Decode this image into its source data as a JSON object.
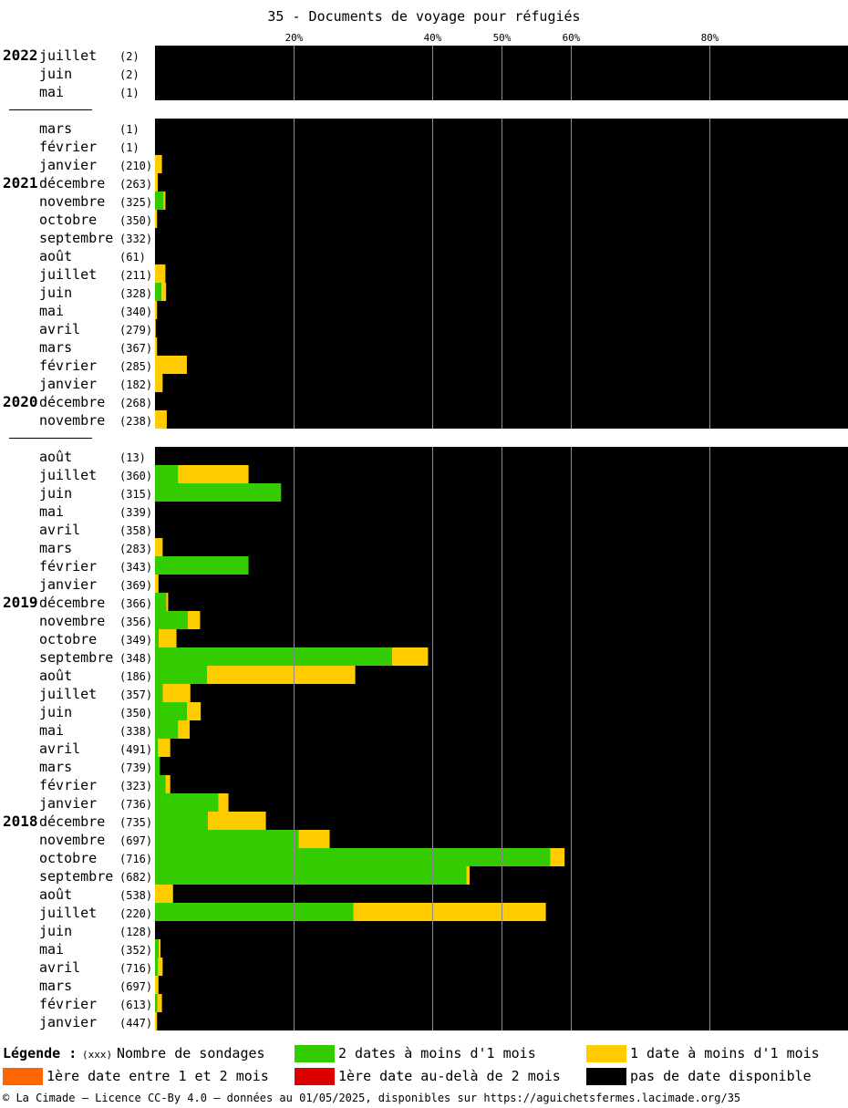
{
  "chart_data": {
    "type": "bar",
    "orientation": "horizontal",
    "stacked": true,
    "title": "35 - Documents de voyage pour réfugiés",
    "x_ticks": [
      "20%",
      "40%",
      "50%",
      "60%",
      "80%"
    ],
    "x_tick_values": [
      20,
      40,
      50,
      60,
      80
    ],
    "xlim": [
      0,
      100
    ],
    "grid": true,
    "series_names": [
      "2 dates à moins d'1 mois",
      "1 date à moins d'1 mois",
      "1ère date entre 1 et 2 mois",
      "1ère date au-delà de 2 mois",
      "pas de date disponible"
    ],
    "series_colors": [
      "#33cc00",
      "#ffcc00",
      "#ff6600",
      "#dd0000",
      "#000000"
    ],
    "groups": [
      {
        "rows": [
          {
            "year": "2022",
            "month": "juillet",
            "count": "(2)",
            "g": 0,
            "y": 0
          },
          {
            "year": "",
            "month": "juin",
            "count": "(2)",
            "g": 0,
            "y": 0
          },
          {
            "year": "",
            "month": "mai",
            "count": "(1)",
            "g": 0,
            "y": 0
          }
        ]
      },
      {
        "rows": [
          {
            "year": "",
            "month": "mars",
            "count": "(1)",
            "g": 0,
            "y": 0
          },
          {
            "year": "",
            "month": "février",
            "count": "(1)",
            "g": 0,
            "y": 0
          },
          {
            "year": "",
            "month": "janvier",
            "count": "(210)",
            "g": 0,
            "y": 1.0
          },
          {
            "year": "2021",
            "month": "décembre",
            "count": "(263)",
            "g": 0,
            "y": 0.4
          },
          {
            "year": "",
            "month": "novembre",
            "count": "(325)",
            "g": 1.2,
            "y": 0.3
          },
          {
            "year": "",
            "month": "octobre",
            "count": "(350)",
            "g": 0,
            "y": 0.3
          },
          {
            "year": "",
            "month": "septembre",
            "count": "(332)",
            "g": 0,
            "y": 0
          },
          {
            "year": "",
            "month": "août",
            "count": "(61)",
            "g": 0,
            "y": 0
          },
          {
            "year": "",
            "month": "juillet",
            "count": "(211)",
            "g": 0,
            "y": 1.5
          },
          {
            "year": "",
            "month": "juin",
            "count": "(328)",
            "g": 0.9,
            "y": 0.7
          },
          {
            "year": "",
            "month": "mai",
            "count": "(340)",
            "g": 0,
            "y": 0.3
          },
          {
            "year": "",
            "month": "avril",
            "count": "(279)",
            "g": 0,
            "y": 0.1
          },
          {
            "year": "",
            "month": "mars",
            "count": "(367)",
            "g": 0,
            "y": 0.3
          },
          {
            "year": "",
            "month": "février",
            "count": "(285)",
            "g": 0,
            "y": 4.6
          },
          {
            "year": "",
            "month": "janvier",
            "count": "(182)",
            "g": 0,
            "y": 1.1
          },
          {
            "year": "2020",
            "month": "décembre",
            "count": "(268)",
            "g": 0,
            "y": 0
          },
          {
            "year": "",
            "month": "novembre",
            "count": "(238)",
            "g": 0,
            "y": 1.7
          }
        ]
      },
      {
        "rows": [
          {
            "year": "",
            "month": "août",
            "count": "(13)",
            "g": 0,
            "y": 0
          },
          {
            "year": "",
            "month": "juillet",
            "count": "(360)",
            "g": 3.3,
            "y": 10.2
          },
          {
            "year": "",
            "month": "juin",
            "count": "(315)",
            "g": 18.2,
            "y": 0
          },
          {
            "year": "",
            "month": "mai",
            "count": "(339)",
            "g": 0,
            "y": 0
          },
          {
            "year": "",
            "month": "avril",
            "count": "(358)",
            "g": 0,
            "y": 0
          },
          {
            "year": "",
            "month": "mars",
            "count": "(283)",
            "g": 0,
            "y": 1.1
          },
          {
            "year": "",
            "month": "février",
            "count": "(343)",
            "g": 13.5,
            "y": 0
          },
          {
            "year": "",
            "month": "janvier",
            "count": "(369)",
            "g": 0,
            "y": 0.5
          },
          {
            "year": "2019",
            "month": "décembre",
            "count": "(366)",
            "g": 1.6,
            "y": 0.3
          },
          {
            "year": "",
            "month": "novembre",
            "count": "(356)",
            "g": 4.7,
            "y": 1.8
          },
          {
            "year": "",
            "month": "octobre",
            "count": "(349)",
            "g": 0.5,
            "y": 2.6
          },
          {
            "year": "",
            "month": "septembre",
            "count": "(348)",
            "g": 34.2,
            "y": 5.2
          },
          {
            "year": "",
            "month": "août",
            "count": "(186)",
            "g": 7.5,
            "y": 21.4
          },
          {
            "year": "",
            "month": "juillet",
            "count": "(357)",
            "g": 1.1,
            "y": 4.0
          },
          {
            "year": "",
            "month": "juin",
            "count": "(350)",
            "g": 4.6,
            "y": 2.0
          },
          {
            "year": "",
            "month": "mai",
            "count": "(338)",
            "g": 3.3,
            "y": 1.7
          },
          {
            "year": "",
            "month": "avril",
            "count": "(491)",
            "g": 0.4,
            "y": 1.8
          },
          {
            "year": "",
            "month": "mars",
            "count": "(739)",
            "g": 0.7,
            "y": 0
          },
          {
            "year": "",
            "month": "février",
            "count": "(323)",
            "g": 1.5,
            "y": 0.7
          },
          {
            "year": "",
            "month": "janvier",
            "count": "(736)",
            "g": 9.1,
            "y": 1.5
          },
          {
            "year": "2018",
            "month": "décembre",
            "count": "(735)",
            "g": 7.6,
            "y": 8.4
          },
          {
            "year": "",
            "month": "novembre",
            "count": "(697)",
            "g": 20.7,
            "y": 4.5
          },
          {
            "year": "",
            "month": "octobre",
            "count": "(716)",
            "g": 57.0,
            "y": 2.1
          },
          {
            "year": "",
            "month": "septembre",
            "count": "(682)",
            "g": 44.9,
            "y": 0.5
          },
          {
            "year": "",
            "month": "août",
            "count": "(538)",
            "g": 0,
            "y": 2.6
          },
          {
            "year": "",
            "month": "juillet",
            "count": "(220)",
            "g": 28.6,
            "y": 27.8
          },
          {
            "year": "",
            "month": "juin",
            "count": "(128)",
            "g": 0,
            "y": 0
          },
          {
            "year": "",
            "month": "mai",
            "count": "(352)",
            "g": 0.5,
            "y": 0.3
          },
          {
            "year": "",
            "month": "avril",
            "count": "(716)",
            "g": 0.4,
            "y": 0.7
          },
          {
            "year": "",
            "month": "mars",
            "count": "(697)",
            "g": 0,
            "y": 0.5
          },
          {
            "year": "",
            "month": "février",
            "count": "(613)",
            "g": 0.3,
            "y": 0.7
          },
          {
            "year": "",
            "month": "janvier",
            "count": "(447)",
            "g": 0,
            "y": 0.3
          }
        ]
      }
    ]
  },
  "legend": {
    "title": "Légende :",
    "count_label": "(xxx)",
    "count_text": "Nombre de sondages",
    "items": [
      {
        "label": "2 dates à moins d'1 mois",
        "color": "#33cc00"
      },
      {
        "label": "1 date à moins d'1 mois",
        "color": "#ffcc00"
      },
      {
        "label": "1ère date entre 1 et 2 mois",
        "color": "#ff6600"
      },
      {
        "label": "1ère date au-delà de 2 mois",
        "color": "#dd0000"
      },
      {
        "label": "pas de date disponible",
        "color": "#000000"
      }
    ]
  },
  "footer": "© La Cimade – Licence CC-By 4.0 – données au 01/05/2025, disponibles sur https://aguichetsfermes.lacimade.org/35"
}
